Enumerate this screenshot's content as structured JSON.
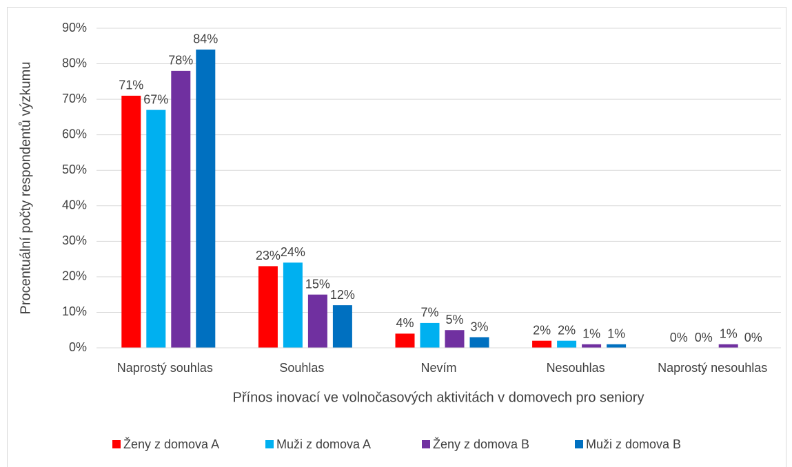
{
  "chart_data": {
    "type": "bar",
    "x_label": "Přínos inovací ve volnočasových aktivitách v domovech pro seniory",
    "y_label": "Procentuální počty respondentů výzkumu",
    "categories": [
      "Naprostý souhlas",
      "Souhlas",
      "Nevím",
      "Nesouhlas",
      "Naprostý nesouhlas"
    ],
    "series": [
      {
        "name": "Ženy z domova A",
        "color": "#ff0000",
        "values": [
          71,
          23,
          4,
          2,
          0
        ],
        "value_labels": [
          "71%",
          "23%",
          "4%",
          "2%",
          "0%"
        ]
      },
      {
        "name": "Muži z domova A",
        "color": "#00b0f0",
        "values": [
          67,
          24,
          7,
          2,
          0
        ],
        "value_labels": [
          "67%",
          "24%",
          "7%",
          "2%",
          "0%"
        ]
      },
      {
        "name": "Ženy z domova B",
        "color": "#7030a0",
        "values": [
          78,
          15,
          5,
          1,
          1
        ],
        "value_labels": [
          "78%",
          "15%",
          "5%",
          "1%",
          "1%"
        ]
      },
      {
        "name": "Muži z domova B",
        "color": "#0070c0",
        "values": [
          84,
          12,
          3,
          1,
          0
        ],
        "value_labels": [
          "84%",
          "12%",
          "3%",
          "1%",
          "0%"
        ]
      }
    ],
    "ylim": [
      0,
      90
    ],
    "yticks": [
      {
        "value": 0,
        "label": "0%"
      },
      {
        "value": 10,
        "label": "10%"
      },
      {
        "value": 20,
        "label": "20%"
      },
      {
        "value": 30,
        "label": "30%"
      },
      {
        "value": 40,
        "label": "40%"
      },
      {
        "value": 50,
        "label": "50%"
      },
      {
        "value": 60,
        "label": "60%"
      },
      {
        "value": 70,
        "label": "70%"
      },
      {
        "value": 80,
        "label": "80%"
      },
      {
        "value": 90,
        "label": "90%"
      }
    ],
    "grid": true,
    "legend": "bottom"
  }
}
